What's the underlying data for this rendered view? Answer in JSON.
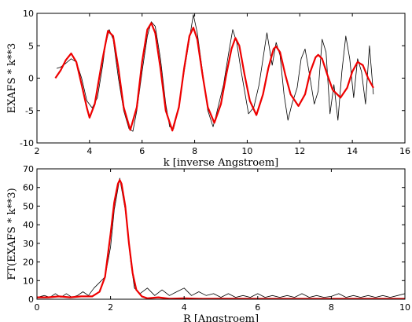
{
  "chart_data": [
    {
      "type": "line",
      "xlabel": "k [inverse Angstroem]",
      "ylabel": "EXAFS * k**3",
      "xlim": [
        2,
        16
      ],
      "ylim": [
        -10,
        10
      ],
      "xticks": [
        2,
        4,
        6,
        8,
        10,
        12,
        14,
        16
      ],
      "yticks": [
        -10,
        -5,
        0,
        5,
        10
      ],
      "grid": false,
      "series": [
        {
          "role": "data",
          "color": "#000000",
          "x": [
            2.75,
            2.9,
            3.1,
            3.3,
            3.5,
            3.7,
            3.9,
            4.1,
            4.3,
            4.5,
            4.6,
            4.75,
            4.9,
            5.1,
            5.3,
            5.5,
            5.65,
            5.8,
            6.0,
            6.2,
            6.35,
            6.5,
            6.7,
            6.9,
            7.05,
            7.2,
            7.4,
            7.6,
            7.8,
            7.95,
            8.1,
            8.3,
            8.5,
            8.7,
            8.8,
            8.95,
            9.1,
            9.3,
            9.45,
            9.6,
            9.75,
            9.9,
            10.05,
            10.25,
            10.45,
            10.6,
            10.75,
            10.95,
            11.1,
            11.25,
            11.4,
            11.55,
            11.7,
            11.9,
            12.05,
            12.2,
            12.35,
            12.55,
            12.7,
            12.85,
            13.0,
            13.15,
            13.3,
            13.45,
            13.6,
            13.75,
            13.9,
            14.05,
            14.2,
            14.35,
            14.5,
            14.65,
            14.8
          ],
          "y": [
            1.5,
            1.7,
            2.3,
            3.0,
            2.5,
            0.0,
            -3.5,
            -4.6,
            -3.0,
            2.0,
            5.0,
            7.5,
            6.0,
            0.0,
            -5.0,
            -7.8,
            -8.2,
            -5.0,
            1.0,
            6.5,
            8.7,
            8.0,
            3.0,
            -4.0,
            -7.5,
            -7.8,
            -4.5,
            1.0,
            6.0,
            9.8,
            7.0,
            1.0,
            -5.0,
            -7.5,
            -6.0,
            -3.5,
            -1.0,
            4.0,
            7.5,
            5.5,
            1.5,
            -2.0,
            -5.5,
            -4.5,
            -1.0,
            3.0,
            7.0,
            2.0,
            5.5,
            3.5,
            -2.5,
            -6.5,
            -4.0,
            -1.5,
            3.0,
            4.5,
            1.0,
            -4.0,
            -2.0,
            6.0,
            4.0,
            -5.5,
            -1.0,
            -6.5,
            1.0,
            6.5,
            3.0,
            -3.0,
            3.0,
            1.0,
            -4.0,
            5.0,
            -2.5
          ]
        },
        {
          "role": "fit",
          "color": "#ee0000",
          "x": [
            2.7,
            2.9,
            3.1,
            3.3,
            3.5,
            3.7,
            3.9,
            4.0,
            4.2,
            4.45,
            4.7,
            4.9,
            5.1,
            5.3,
            5.55,
            5.8,
            6.0,
            6.2,
            6.35,
            6.5,
            6.7,
            6.9,
            7.15,
            7.4,
            7.6,
            7.8,
            7.95,
            8.1,
            8.3,
            8.5,
            8.75,
            9.0,
            9.2,
            9.4,
            9.55,
            9.7,
            9.9,
            10.1,
            10.35,
            10.6,
            10.8,
            11.0,
            11.1,
            11.25,
            11.45,
            11.65,
            11.95,
            12.2,
            12.4,
            12.6,
            12.7,
            12.85,
            13.05,
            13.25,
            13.55,
            13.8,
            14.0,
            14.2,
            14.4,
            14.6,
            14.8
          ],
          "y": [
            0.0,
            1.2,
            2.8,
            3.8,
            2.5,
            -1.0,
            -4.6,
            -6.1,
            -4.0,
            2.0,
            7.3,
            6.5,
            1.5,
            -4.5,
            -8.0,
            -4.5,
            2.5,
            7.5,
            8.5,
            7.0,
            1.5,
            -5.0,
            -8.1,
            -4.5,
            1.5,
            6.5,
            7.8,
            6.0,
            0.5,
            -4.5,
            -6.9,
            -4.0,
            0.5,
            4.5,
            6.2,
            5.0,
            0.5,
            -3.5,
            -5.7,
            -2.5,
            1.5,
            4.5,
            4.9,
            4.0,
            0.5,
            -2.5,
            -4.3,
            -2.5,
            1.0,
            3.2,
            3.6,
            3.0,
            0.5,
            -1.8,
            -3.0,
            -1.5,
            1.0,
            2.5,
            2.0,
            0.0,
            -1.5
          ]
        }
      ]
    },
    {
      "type": "line",
      "xlabel": "R [Angstroem]",
      "ylabel": "FT(EXAFS * k**3)",
      "xlim": [
        0,
        10
      ],
      "ylim": [
        0,
        70
      ],
      "xticks": [
        0,
        2,
        4,
        6,
        8,
        10
      ],
      "yticks": [
        0,
        10,
        20,
        30,
        40,
        50,
        60,
        70
      ],
      "grid": false,
      "series": [
        {
          "role": "data",
          "color": "#000000",
          "x": [
            0.0,
            0.2,
            0.35,
            0.5,
            0.65,
            0.8,
            0.95,
            1.1,
            1.25,
            1.4,
            1.55,
            1.7,
            1.85,
            2.0,
            2.1,
            2.25,
            2.4,
            2.55,
            2.65,
            2.8,
            3.0,
            3.2,
            3.4,
            3.6,
            3.8,
            4.0,
            4.2,
            4.4,
            4.6,
            4.8,
            5.0,
            5.2,
            5.4,
            5.6,
            5.8,
            6.0,
            6.2,
            6.4,
            6.6,
            6.8,
            7.0,
            7.2,
            7.4,
            7.6,
            7.8,
            8.0,
            8.2,
            8.4,
            8.6,
            8.8,
            9.0,
            9.2,
            9.4,
            9.6,
            9.8,
            10.0
          ],
          "y": [
            1.0,
            2.0,
            1.0,
            3.0,
            1.0,
            3.0,
            1.0,
            2.0,
            4.0,
            2.0,
            6.0,
            9.0,
            12.0,
            28.0,
            48.0,
            65.0,
            48.0,
            20.0,
            6.0,
            3.0,
            6.0,
            2.0,
            5.0,
            2.0,
            4.0,
            6.0,
            2.0,
            4.0,
            2.0,
            3.0,
            1.0,
            3.0,
            1.0,
            2.0,
            1.0,
            3.0,
            1.0,
            2.0,
            1.0,
            2.0,
            1.0,
            3.0,
            1.0,
            2.0,
            1.0,
            1.5,
            3.0,
            1.0,
            2.0,
            1.0,
            2.0,
            1.0,
            2.0,
            1.0,
            2.0,
            3.0
          ]
        },
        {
          "role": "fit",
          "color": "#ee0000",
          "x": [
            0.0,
            0.3,
            0.6,
            0.9,
            1.2,
            1.5,
            1.7,
            1.85,
            2.0,
            2.1,
            2.2,
            2.25,
            2.3,
            2.4,
            2.5,
            2.6,
            2.7,
            2.85,
            3.0,
            3.3,
            3.6,
            4.0,
            4.5,
            5.0,
            6.0,
            7.0,
            8.0,
            9.0,
            10.0
          ],
          "y": [
            1.0,
            1.0,
            1.5,
            1.0,
            1.5,
            1.5,
            4.0,
            12.0,
            35.0,
            52.0,
            62.0,
            64.0,
            62.0,
            50.0,
            30.0,
            14.0,
            5.0,
            1.5,
            0.5,
            1.0,
            0.3,
            0.5,
            0.2,
            0.3,
            0.2,
            0.2,
            0.2,
            0.2,
            0.2
          ]
        }
      ]
    }
  ]
}
